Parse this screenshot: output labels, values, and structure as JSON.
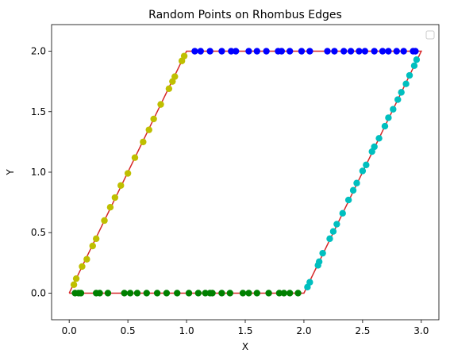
{
  "chart_data": {
    "type": "scatter",
    "title": "Random Points on Rhombus Edges",
    "xlabel": "X",
    "ylabel": "Y",
    "xlim": [
      -0.15,
      3.15
    ],
    "ylim": [
      -0.22,
      2.22
    ],
    "xticks": [
      0.0,
      0.5,
      1.0,
      1.5,
      2.0,
      2.5,
      3.0
    ],
    "yticks": [
      0.0,
      0.5,
      1.0,
      1.5,
      2.0
    ],
    "xtick_labels": [
      "0.0",
      "0.5",
      "1.0",
      "1.5",
      "2.0",
      "2.5",
      "3.0"
    ],
    "ytick_labels": [
      "0.0",
      "0.5",
      "1.0",
      "1.5",
      "2.0"
    ],
    "grid": false,
    "legend": "top-right (empty)",
    "outline": {
      "color": "#d62728",
      "points": [
        [
          0,
          0
        ],
        [
          2,
          0
        ],
        [
          3,
          2
        ],
        [
          1,
          2
        ],
        [
          0,
          0
        ]
      ]
    },
    "series": [
      {
        "color": "#008000",
        "edge": "bottom",
        "x": [
          0.05,
          0.08,
          0.1,
          0.23,
          0.26,
          0.33,
          0.47,
          0.52,
          0.58,
          0.66,
          0.75,
          0.83,
          0.92,
          1.02,
          1.1,
          1.16,
          1.2,
          1.22,
          1.3,
          1.37,
          1.48,
          1.53,
          1.6,
          1.7,
          1.79,
          1.83,
          1.88,
          1.95
        ],
        "y": [
          0,
          0,
          0,
          0,
          0,
          0,
          0,
          0,
          0,
          0,
          0,
          0,
          0,
          0,
          0,
          0,
          0,
          0,
          0,
          0,
          0,
          0,
          0,
          0,
          0,
          0,
          0,
          0
        ]
      },
      {
        "color": "#00bfbf",
        "edge": "right",
        "x": [
          2.03,
          2.05,
          2.12,
          2.13,
          2.16,
          2.22,
          2.25,
          2.28,
          2.33,
          2.38,
          2.42,
          2.45,
          2.5,
          2.53,
          2.58,
          2.6,
          2.64,
          2.69,
          2.72,
          2.76,
          2.8,
          2.83,
          2.87,
          2.9,
          2.94,
          2.96
        ],
        "y": [
          0.05,
          0.09,
          0.23,
          0.26,
          0.33,
          0.45,
          0.51,
          0.57,
          0.66,
          0.77,
          0.85,
          0.91,
          1.01,
          1.06,
          1.17,
          1.21,
          1.28,
          1.38,
          1.45,
          1.52,
          1.6,
          1.66,
          1.73,
          1.8,
          1.88,
          1.93
        ]
      },
      {
        "color": "#0000ff",
        "edge": "top",
        "x": [
          1.07,
          1.12,
          1.2,
          1.3,
          1.38,
          1.42,
          1.53,
          1.6,
          1.68,
          1.78,
          1.81,
          1.88,
          1.98,
          2.05,
          2.2,
          2.26,
          2.34,
          2.4,
          2.47,
          2.52,
          2.6,
          2.67,
          2.72,
          2.79,
          2.85,
          2.93,
          2.95
        ],
        "y": [
          2,
          2,
          2,
          2,
          2,
          2,
          2,
          2,
          2,
          2,
          2,
          2,
          2,
          2,
          2,
          2,
          2,
          2,
          2,
          2,
          2,
          2,
          2,
          2,
          2,
          2,
          2
        ]
      },
      {
        "color": "#bfbf00",
        "edge": "left",
        "x": [
          0.04,
          0.06,
          0.11,
          0.15,
          0.2,
          0.23,
          0.3,
          0.35,
          0.39,
          0.44,
          0.5,
          0.56,
          0.63,
          0.68,
          0.72,
          0.78,
          0.85,
          0.88,
          0.9,
          0.96,
          0.98
        ],
        "y": [
          0.07,
          0.12,
          0.22,
          0.28,
          0.39,
          0.45,
          0.6,
          0.71,
          0.79,
          0.89,
          0.99,
          1.12,
          1.25,
          1.35,
          1.44,
          1.56,
          1.69,
          1.75,
          1.79,
          1.92,
          1.96
        ]
      }
    ]
  }
}
